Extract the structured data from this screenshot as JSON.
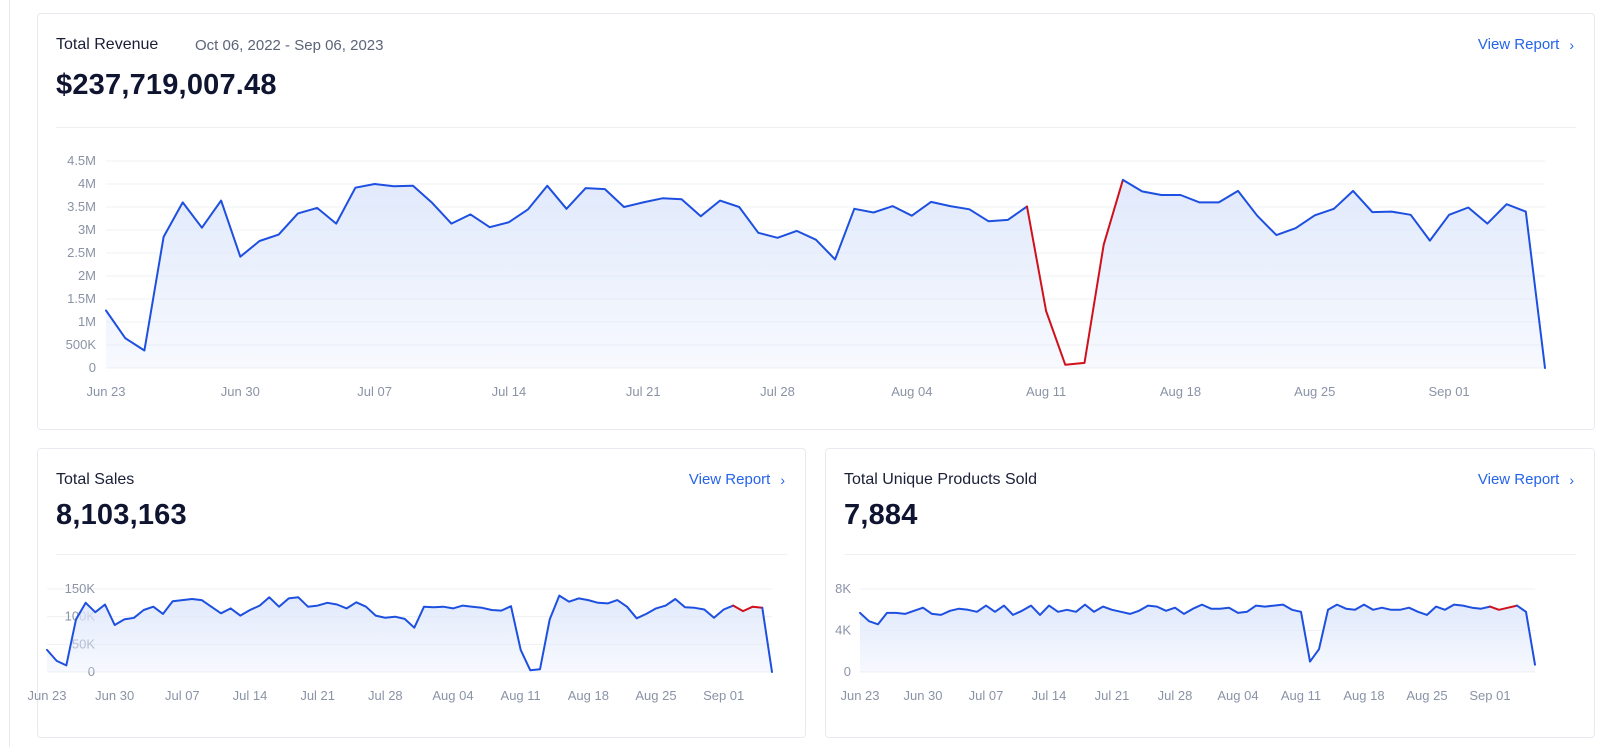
{
  "colors": {
    "line": "#1d4fe0",
    "anomaly": "#d0101a",
    "fill_top": "#dfe8fb",
    "grid": "#eef0f4",
    "link": "#2563eb"
  },
  "revenue": {
    "title": "Total Revenue",
    "date_range": "Oct 06, 2022 - Sep 06, 2023",
    "link_label": "View Report",
    "link_icon": "chevron-right-icon",
    "value": "$237,719,007.48"
  },
  "sales": {
    "title": "Total Sales",
    "link_label": "View Report",
    "link_icon": "chevron-right-icon",
    "value": "8,103,163"
  },
  "unique": {
    "title": "Total Unique Products Sold",
    "link_label": "View Report",
    "link_icon": "chevron-right-icon",
    "value": "7,884"
  },
  "chart_data": [
    {
      "type": "area",
      "x_labels": [
        "Jun 23",
        "Jun 30",
        "Jul 07",
        "Jul 14",
        "Jul 21",
        "Jul 28",
        "Aug 04",
        "Aug 11",
        "Aug 18",
        "Aug 25",
        "Sep 01"
      ],
      "y_ticks": [
        "0",
        "500K",
        "1M",
        "1.5M",
        "2M",
        "2.5M",
        "3M",
        "3.5M",
        "4M",
        "4.5M"
      ],
      "ylim": [
        0,
        4500000
      ],
      "grid": true,
      "anomaly_range": [
        48,
        53
      ],
      "values": [
        1250000,
        650000,
        380000,
        2850000,
        3600000,
        3050000,
        3640000,
        2420000,
        2760000,
        2900000,
        3360000,
        3480000,
        3140000,
        3920000,
        4000000,
        3950000,
        3960000,
        3590000,
        3140000,
        3340000,
        3060000,
        3170000,
        3450000,
        3960000,
        3460000,
        3910000,
        3890000,
        3500000,
        3600000,
        3690000,
        3670000,
        3300000,
        3640000,
        3500000,
        2940000,
        2830000,
        2980000,
        2790000,
        2360000,
        3460000,
        3380000,
        3520000,
        3310000,
        3610000,
        3520000,
        3450000,
        3190000,
        3220000,
        3510000,
        1240000,
        70000,
        110000,
        2680000,
        4090000,
        3840000,
        3760000,
        3760000,
        3600000,
        3600000,
        3850000,
        3310000,
        2890000,
        3040000,
        3320000,
        3460000,
        3850000,
        3390000,
        3400000,
        3330000,
        2770000,
        3330000,
        3490000,
        3140000,
        3560000,
        3400000,
        0
      ]
    },
    {
      "type": "area",
      "x_labels": [
        "Jun 23",
        "Jun 30",
        "Jul 07",
        "Jul 14",
        "Jul 21",
        "Jul 28",
        "Aug 04",
        "Aug 11",
        "Aug 18",
        "Aug 25",
        "Sep 01"
      ],
      "y_ticks": [
        "0",
        "50K",
        "100K",
        "150K"
      ],
      "ylim": [
        0,
        150000
      ],
      "grid": true,
      "anomaly_range": [
        71,
        74
      ],
      "values": [
        40000,
        20000,
        12000,
        95000,
        125000,
        108000,
        122000,
        85000,
        95000,
        98000,
        112000,
        118000,
        105000,
        128000,
        130000,
        132000,
        130000,
        118000,
        106000,
        115000,
        102000,
        112000,
        120000,
        135000,
        118000,
        133000,
        135000,
        118000,
        120000,
        125000,
        122000,
        115000,
        126000,
        118000,
        102000,
        98000,
        100000,
        96000,
        80000,
        118000,
        117000,
        118000,
        115000,
        120000,
        118000,
        116000,
        112000,
        111000,
        119000,
        40000,
        3000,
        5000,
        95000,
        138000,
        127000,
        133000,
        130000,
        125000,
        124000,
        130000,
        118000,
        97000,
        105000,
        115000,
        120000,
        132000,
        117000,
        116000,
        113000,
        98000,
        113000,
        120000,
        110000,
        118000,
        116000,
        0
      ]
    },
    {
      "type": "area",
      "x_labels": [
        "Jun 23",
        "Jun 30",
        "Jul 07",
        "Jul 14",
        "Jul 21",
        "Jul 28",
        "Aug 04",
        "Aug 11",
        "Aug 18",
        "Aug 25",
        "Sep 01"
      ],
      "y_ticks": [
        "0",
        "4K",
        "8K"
      ],
      "ylim": [
        0,
        8000
      ],
      "grid": true,
      "anomaly_range": [
        70,
        73
      ],
      "values": [
        5700,
        4900,
        4600,
        5700,
        5700,
        5600,
        5900,
        6200,
        5600,
        5500,
        5900,
        6100,
        6000,
        5800,
        6400,
        5800,
        6400,
        5500,
        5900,
        6400,
        5500,
        6400,
        5800,
        6000,
        5800,
        6500,
        5800,
        6300,
        6000,
        5800,
        5600,
        5900,
        6400,
        6300,
        5900,
        6200,
        5600,
        6100,
        6500,
        6100,
        6100,
        6200,
        5700,
        5800,
        6400,
        6300,
        6400,
        6500,
        6000,
        5800,
        1000,
        2200,
        6000,
        6500,
        6100,
        6000,
        6500,
        6000,
        6200,
        6000,
        6000,
        6200,
        5800,
        5500,
        6300,
        6000,
        6500,
        6400,
        6200,
        6100,
        6300,
        6000,
        6200,
        6400,
        5800,
        700
      ]
    }
  ]
}
